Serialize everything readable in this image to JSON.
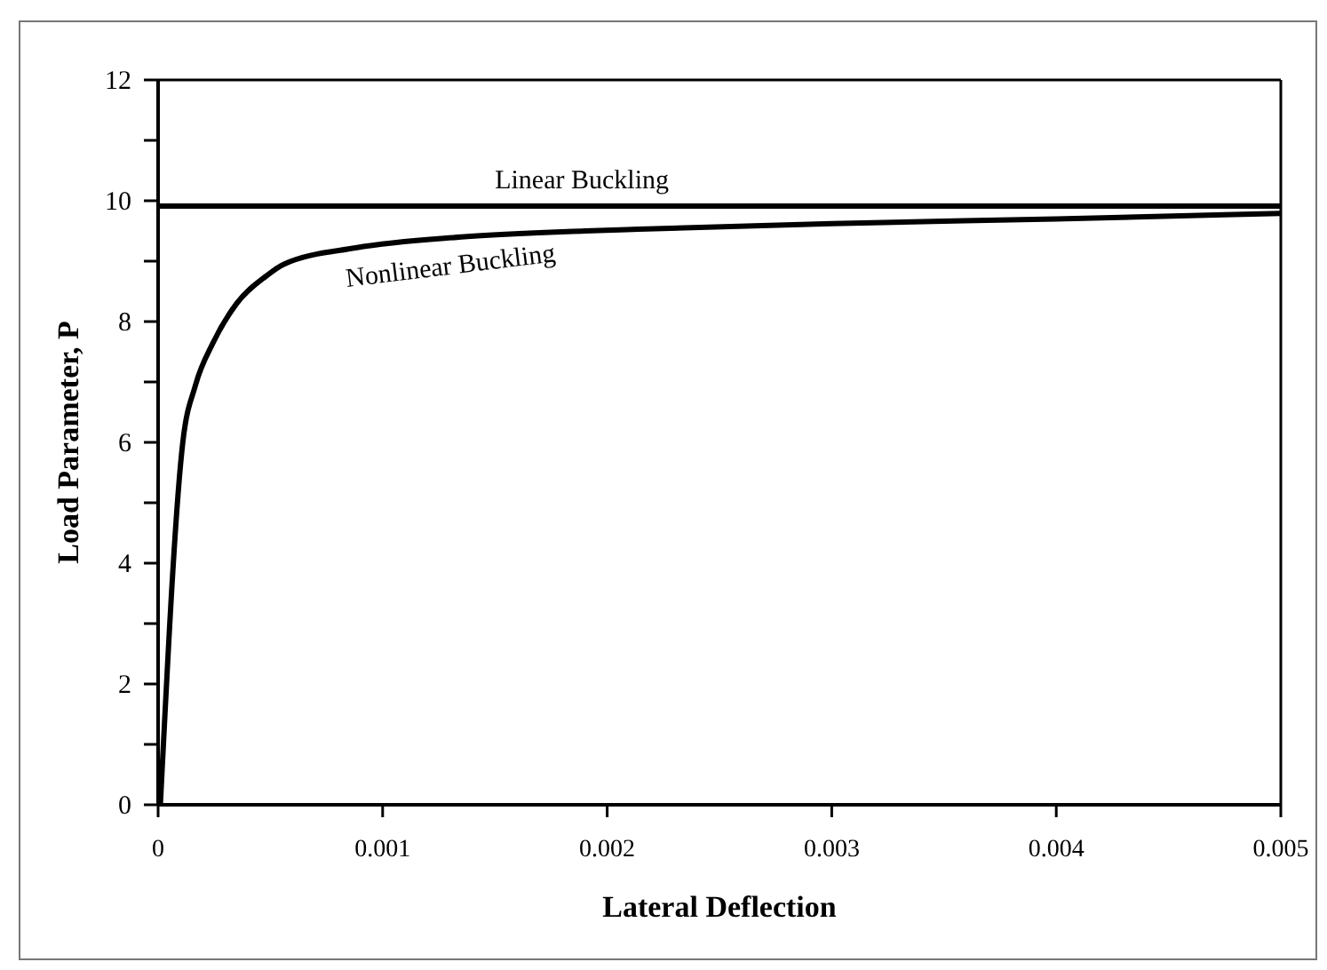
{
  "chart_data": {
    "type": "line",
    "xlabel": "Lateral Deflection",
    "ylabel": "Load Parameter, P",
    "xlim": [
      0,
      0.005
    ],
    "xticks": [
      0,
      0.001,
      0.002,
      0.003,
      0.004,
      0.005
    ],
    "ylim": [
      0,
      12
    ],
    "yticks": [
      0,
      {
        "value": 1,
        "label": null
      },
      2,
      {
        "value": 3,
        "label": null
      },
      4,
      {
        "value": 5,
        "label": null
      },
      6,
      {
        "value": 7,
        "label": null
      },
      8,
      {
        "value": 9,
        "label": null
      },
      10,
      {
        "value": 11,
        "label": null
      },
      12
    ],
    "grid": false,
    "legend": false,
    "marker": "none",
    "line_style": "solid",
    "series": [
      {
        "name": "Linear Buckling",
        "color": "#000000",
        "x": [
          0,
          0.005
        ],
        "values": [
          9.91,
          9.91
        ]
      },
      {
        "name": "Nonlinear Buckling",
        "color": "#000000",
        "x": [
          1e-05,
          0.00011,
          0.000166,
          0.000245,
          0.00035,
          0.00048,
          0.00056,
          0.00088,
          0.00135,
          0.0019,
          0.00214,
          0.003,
          0.004,
          0.005
        ],
        "values": [
          0,
          6,
          6.94,
          7.65,
          8.3,
          8.75,
          8.95,
          9.22,
          9.4,
          9.5,
          9.53,
          9.62,
          9.7,
          9.79
        ]
      }
    ]
  }
}
